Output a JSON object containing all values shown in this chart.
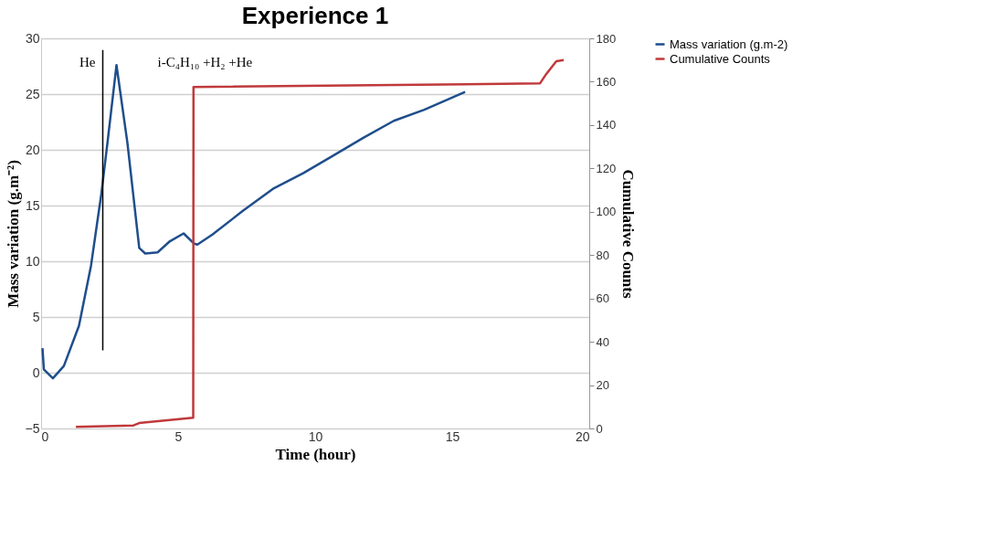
{
  "chart_data": {
    "type": "line",
    "title": "Experience 1",
    "xlabel": "Time (hour)",
    "ylabel": "Mass variation (g.m⁻²)",
    "y2label": "Cumulative Counts",
    "xlim": [
      0,
      20
    ],
    "xticks": [
      0,
      5,
      10,
      15,
      20
    ],
    "ylim": [
      -5,
      30
    ],
    "yticks": [
      -5,
      0,
      5,
      10,
      15,
      20,
      25,
      30
    ],
    "y2lim": [
      0,
      180
    ],
    "y2ticks": [
      0,
      20,
      40,
      60,
      80,
      100,
      120,
      140,
      160,
      180
    ],
    "grid": "y",
    "legend": "top right",
    "marker": "none",
    "line_style": "solid",
    "series": [
      {
        "name": "Mass variation (g.m-2)",
        "color": "#1f4e8c",
        "x": [
          0.05,
          0.1,
          0.43,
          0.83,
          1.38,
          1.82,
          2.2,
          2.42,
          2.75,
          3.15,
          3.58,
          3.8,
          4.25,
          4.7,
          5.2,
          5.57,
          5.7,
          6.25,
          7.35,
          8.46,
          9.56,
          10.67,
          11.77,
          12.87,
          13.98,
          15.47
        ],
        "values": [
          2.2,
          0.3,
          -0.5,
          0.6,
          4.2,
          9.6,
          16.1,
          20.6,
          27.6,
          20.6,
          11.2,
          10.7,
          10.8,
          11.8,
          12.5,
          11.6,
          11.5,
          12.4,
          14.5,
          16.5,
          17.9,
          19.5,
          21.1,
          22.6,
          23.6,
          25.2
        ]
      },
      {
        "name": "Cumulative Counts",
        "color": "#c0393b",
        "axis": "y2",
        "x": [
          1.27,
          3.37,
          3.58,
          5.55,
          5.56,
          18.2,
          18.4,
          18.8,
          19.07
        ],
        "values": [
          0.7,
          1.4,
          2.5,
          5,
          157.6,
          159.2,
          163,
          169.5,
          170
        ]
      }
    ],
    "ref_lines": [
      {
        "axis": "x",
        "value": 2.25,
        "color": "#000000"
      }
    ],
    "annotations": [
      "He",
      "i-C₄H₁₀ +H₂ +He"
    ]
  }
}
